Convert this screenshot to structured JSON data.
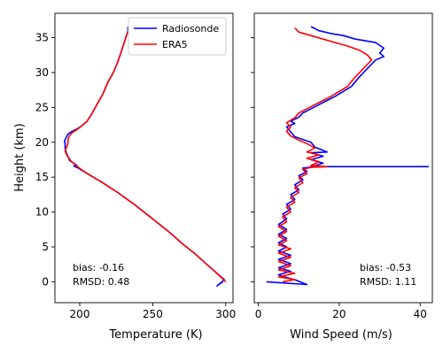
{
  "chart_data": [
    {
      "type": "line",
      "title": "",
      "xlabel": "Temperature (K)",
      "ylabel": "Height (km)",
      "xlim": [
        183,
        305
      ],
      "ylim": [
        -3,
        38.5
      ],
      "xticks": [
        200,
        250,
        300
      ],
      "yticks": [
        0,
        5,
        10,
        15,
        20,
        25,
        30,
        35
      ],
      "grid": false,
      "legend": {
        "placement": "top-right",
        "entries": [
          "Radiosonde",
          "ERA5"
        ]
      },
      "annotation": {
        "bias": "bias: -0.16",
        "rmsd": "RMSD: 0.48"
      },
      "series": [
        {
          "name": "Radiosonde",
          "color": "#0000ff",
          "points": [
            [
              298,
              0
            ],
            [
              296,
              -0.3
            ],
            [
              294,
              -0.6
            ],
            [
              297,
              -0.1
            ],
            [
              299,
              0.3
            ],
            [
              294,
              1.2
            ],
            [
              287,
              2.5
            ],
            [
              279,
              4
            ],
            [
              270,
              5.5
            ],
            [
              262,
              7
            ],
            [
              250,
              9
            ],
            [
              238,
              11
            ],
            [
              226,
              12.8
            ],
            [
              215,
              14.3
            ],
            [
              206,
              15.4
            ],
            [
              199,
              16.3
            ],
            [
              196,
              16.6
            ],
            [
              198,
              16.7
            ],
            [
              193,
              17.4
            ],
            [
              191,
              18.4
            ],
            [
              190,
              19.1
            ],
            [
              190,
              19.9
            ],
            [
              189.5,
              20.1
            ],
            [
              190,
              20.4
            ],
            [
              191,
              20.8
            ],
            [
              192,
              21.2
            ],
            [
              195,
              21.6
            ],
            [
              198,
              21.9
            ],
            [
              201,
              22.3
            ],
            [
              205,
              23
            ],
            [
              208,
              24
            ],
            [
              212,
              25.5
            ],
            [
              216,
              27
            ],
            [
              219,
              28.5
            ],
            [
              223,
              30
            ],
            [
              226,
              31.5
            ],
            [
              228,
              32.7
            ],
            [
              230,
              34
            ],
            [
              232,
              35.3
            ],
            [
              233,
              36
            ],
            [
              233,
              36.6
            ]
          ]
        },
        {
          "name": "ERA5",
          "color": "#ff0000",
          "points": [
            [
              300,
              0
            ],
            [
              294,
              1.2
            ],
            [
              287,
              2.5
            ],
            [
              279,
              4
            ],
            [
              270,
              5.5
            ],
            [
              262,
              7
            ],
            [
              250,
              9
            ],
            [
              238,
              11
            ],
            [
              226,
              12.8
            ],
            [
              215,
              14.3
            ],
            [
              206,
              15.4
            ],
            [
              199,
              16.4
            ],
            [
              194,
              17.3
            ],
            [
              191,
              18.2
            ],
            [
              190,
              18.8
            ],
            [
              191,
              19.3
            ],
            [
              192,
              19.9
            ],
            [
              192,
              20.4
            ],
            [
              193,
              21
            ],
            [
              195,
              21.4
            ],
            [
              198,
              21.8
            ],
            [
              201,
              22.3
            ],
            [
              205,
              23
            ],
            [
              208,
              24
            ],
            [
              212,
              25.5
            ],
            [
              216,
              27
            ],
            [
              219,
              28.5
            ],
            [
              223,
              30
            ],
            [
              226,
              31.5
            ],
            [
              228,
              32.7
            ],
            [
              230,
              34
            ],
            [
              232,
              35.3
            ],
            [
              234,
              36.3
            ]
          ]
        }
      ]
    },
    {
      "type": "line",
      "title": "",
      "xlabel": "Wind Speed (m/s)",
      "ylabel": "",
      "xlim": [
        -1,
        43
      ],
      "ylim": [
        -3,
        38.5
      ],
      "xticks": [
        0,
        20,
        40
      ],
      "yticks": [
        0,
        5,
        10,
        15,
        20,
        25,
        30,
        35
      ],
      "grid": false,
      "annotation": {
        "bias": "bias: -0.53",
        "rmsd": "RMSD: 1.11"
      },
      "series": [
        {
          "name": "Radiosonde",
          "color": "#0000ff",
          "points": [
            [
              2,
              0
            ],
            [
              12,
              -0.4
            ],
            [
              9,
              0.3
            ],
            [
              7,
              0.6
            ],
            [
              5,
              1
            ],
            [
              8,
              1.5
            ],
            [
              5,
              2
            ],
            [
              8,
              2.6
            ],
            [
              5,
              3.2
            ],
            [
              8,
              3.8
            ],
            [
              5,
              4.4
            ],
            [
              7,
              5
            ],
            [
              5,
              5.6
            ],
            [
              7,
              6.2
            ],
            [
              5,
              6.8
            ],
            [
              7,
              7.5
            ],
            [
              5,
              8.2
            ],
            [
              7,
              9
            ],
            [
              6,
              9.7
            ],
            [
              8,
              10.4
            ],
            [
              7,
              11.1
            ],
            [
              9,
              11.8
            ],
            [
              8,
              12.5
            ],
            [
              10,
              13.2
            ],
            [
              9,
              13.9
            ],
            [
              11,
              14.6
            ],
            [
              10,
              15.2
            ],
            [
              12,
              15.8
            ],
            [
              11,
              16.3
            ],
            [
              14,
              16.5
            ],
            [
              42,
              16.5
            ],
            [
              13,
              16.5
            ],
            [
              16,
              17
            ],
            [
              13,
              17.5
            ],
            [
              16,
              18
            ],
            [
              13,
              18.5
            ],
            [
              17,
              18.6
            ],
            [
              14,
              19.3
            ],
            [
              13,
              20
            ],
            [
              11,
              20.4
            ],
            [
              9,
              20.8
            ],
            [
              8,
              21.5
            ],
            [
              7,
              22.2
            ],
            [
              9,
              22.7
            ],
            [
              8,
              23
            ],
            [
              10,
              23.6
            ],
            [
              11,
              24.2
            ],
            [
              13,
              24.8
            ],
            [
              15,
              25.4
            ],
            [
              17,
              26
            ],
            [
              19,
              26.6
            ],
            [
              21,
              27.3
            ],
            [
              23,
              28
            ],
            [
              24,
              28.7
            ],
            [
              25,
              29.4
            ],
            [
              26,
              30
            ],
            [
              27,
              30.6
            ],
            [
              28,
              31.2
            ],
            [
              29,
              31.8
            ],
            [
              31,
              32.3
            ],
            [
              30,
              32.8
            ],
            [
              31,
              33.5
            ],
            [
              29,
              34.3
            ],
            [
              24,
              34.8
            ],
            [
              21,
              35.3
            ],
            [
              18,
              35.6
            ],
            [
              15,
              36
            ],
            [
              13,
              36.6
            ]
          ]
        },
        {
          "name": "ERA5",
          "color": "#ff0000",
          "points": [
            [
              6,
              0
            ],
            [
              9,
              0.3
            ],
            [
              5,
              0.7
            ],
            [
              9,
              1.2
            ],
            [
              5,
              1.7
            ],
            [
              8,
              2.3
            ],
            [
              5,
              2.9
            ],
            [
              8,
              3.5
            ],
            [
              5,
              4.1
            ],
            [
              8,
              4.7
            ],
            [
              5,
              5.3
            ],
            [
              7,
              5.9
            ],
            [
              5,
              6.5
            ],
            [
              7,
              7.2
            ],
            [
              5,
              7.9
            ],
            [
              7,
              8.6
            ],
            [
              6,
              9.3
            ],
            [
              8,
              10
            ],
            [
              7,
              10.7
            ],
            [
              9,
              11.4
            ],
            [
              8,
              12.1
            ],
            [
              10,
              12.8
            ],
            [
              9,
              13.5
            ],
            [
              11,
              14.2
            ],
            [
              10,
              14.9
            ],
            [
              12,
              15.5
            ],
            [
              11,
              16.1
            ],
            [
              13,
              16.4
            ],
            [
              17,
              16.5
            ],
            [
              13,
              16.7
            ],
            [
              15,
              17.2
            ],
            [
              12,
              17.7
            ],
            [
              15,
              18.2
            ],
            [
              12,
              18.6
            ],
            [
              14,
              19.2
            ],
            [
              12,
              19.8
            ],
            [
              10,
              20.3
            ],
            [
              8,
              20.9
            ],
            [
              7,
              21.6
            ],
            [
              8,
              22.2
            ],
            [
              7,
              22.8
            ],
            [
              9,
              23.5
            ],
            [
              10,
              24.2
            ],
            [
              12,
              24.8
            ],
            [
              14,
              25.4
            ],
            [
              16,
              26
            ],
            [
              18,
              26.6
            ],
            [
              20,
              27.3
            ],
            [
              22,
              28
            ],
            [
              23,
              28.7
            ],
            [
              24,
              29.4
            ],
            [
              25,
              30
            ],
            [
              26,
              30.6
            ],
            [
              27,
              31.2
            ],
            [
              28,
              31.8
            ],
            [
              27,
              32.5
            ],
            [
              25,
              33.2
            ],
            [
              22,
              33.8
            ],
            [
              19,
              34.3
            ],
            [
              16,
              34.8
            ],
            [
              13,
              35.3
            ],
            [
              10,
              35.8
            ],
            [
              9,
              36.4
            ]
          ]
        }
      ]
    }
  ]
}
